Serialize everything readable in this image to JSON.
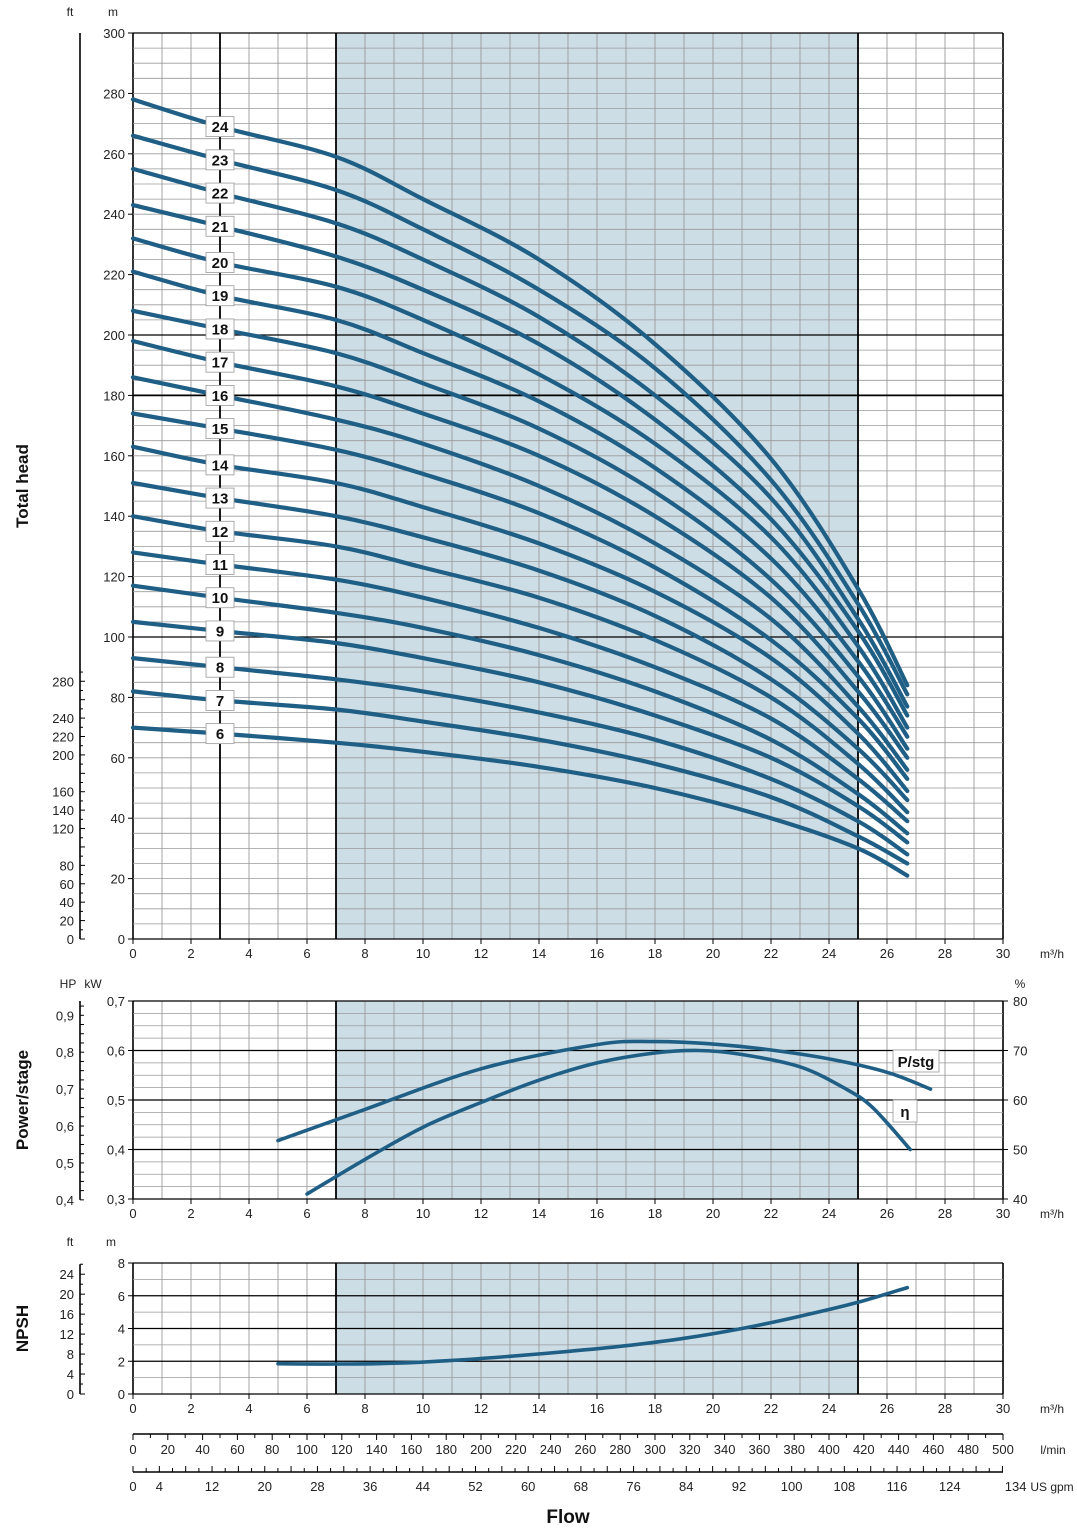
{
  "chart_data": [
    {
      "type": "line",
      "ylabel": "Total head",
      "y_units": [
        "ft",
        "m"
      ],
      "x_unit": "m³/h",
      "xlim": [
        0,
        30
      ],
      "x_ticks": [
        0,
        2,
        4,
        6,
        8,
        10,
        12,
        14,
        16,
        18,
        20,
        22,
        24,
        26,
        28,
        30
      ],
      "ylim": [
        0,
        300
      ],
      "y_ticks_m": [
        0,
        20,
        40,
        60,
        80,
        100,
        120,
        140,
        160,
        180,
        200,
        220,
        240,
        260,
        280,
        300
      ],
      "y_ticks_ft": [
        0,
        20,
        40,
        60,
        80,
        120,
        140,
        160,
        200,
        220,
        240,
        280
      ],
      "recommended_range": [
        7,
        25
      ],
      "grid": true,
      "x": [
        0,
        3,
        7,
        10,
        14,
        18,
        22,
        25,
        26.7
      ],
      "series": [
        {
          "name": "6",
          "values": [
            70,
            68,
            65,
            62,
            57,
            50,
            40,
            30,
            21
          ]
        },
        {
          "name": "7",
          "values": [
            82,
            79,
            76,
            72,
            66,
            58,
            47,
            34,
            25
          ]
        },
        {
          "name": "8",
          "values": [
            93,
            90,
            86,
            82,
            75,
            66,
            53,
            39,
            28
          ]
        },
        {
          "name": "9",
          "values": [
            105,
            102,
            98,
            93,
            85,
            74,
            60,
            44,
            32
          ]
        },
        {
          "name": "10",
          "values": [
            117,
            113,
            108,
            103,
            94,
            82,
            66,
            48,
            35
          ]
        },
        {
          "name": "11",
          "values": [
            128,
            124,
            119,
            113,
            103,
            90,
            73,
            53,
            39
          ]
        },
        {
          "name": "12",
          "values": [
            140,
            135,
            130,
            123,
            113,
            99,
            80,
            58,
            42
          ]
        },
        {
          "name": "13",
          "values": [
            151,
            146,
            140,
            133,
            122,
            107,
            86,
            63,
            46
          ]
        },
        {
          "name": "14",
          "values": [
            163,
            157,
            151,
            143,
            131,
            115,
            93,
            68,
            49
          ]
        },
        {
          "name": "15",
          "values": [
            174,
            169,
            162,
            154,
            141,
            123,
            99,
            73,
            53
          ]
        },
        {
          "name": "16",
          "values": [
            186,
            180,
            172,
            164,
            150,
            131,
            106,
            77,
            56
          ]
        },
        {
          "name": "17",
          "values": [
            198,
            191,
            183,
            174,
            160,
            140,
            113,
            82,
            60
          ]
        },
        {
          "name": "18",
          "values": [
            208,
            202,
            194,
            184,
            169,
            148,
            119,
            87,
            63
          ]
        },
        {
          "name": "19",
          "values": [
            221,
            213,
            205,
            194,
            178,
            156,
            126,
            92,
            67
          ]
        },
        {
          "name": "20",
          "values": [
            232,
            224,
            216,
            205,
            187,
            164,
            133,
            97,
            70
          ]
        },
        {
          "name": "21",
          "values": [
            243,
            236,
            226,
            215,
            197,
            172,
            139,
            102,
            74
          ]
        },
        {
          "name": "22",
          "values": [
            255,
            247,
            237,
            225,
            206,
            180,
            146,
            106,
            77
          ]
        },
        {
          "name": "23",
          "values": [
            266,
            258,
            248,
            235,
            215,
            189,
            152,
            111,
            81
          ]
        },
        {
          "name": "24",
          "values": [
            278,
            269,
            259,
            245,
            225,
            197,
            159,
            116,
            84
          ]
        }
      ]
    },
    {
      "type": "line",
      "ylabel": "Power/stage",
      "y_units_left": [
        "HP",
        "kW"
      ],
      "y_unit_right": "%",
      "x_unit": "m³/h",
      "xlim": [
        0,
        30
      ],
      "x_ticks": [
        0,
        2,
        4,
        6,
        8,
        10,
        12,
        14,
        16,
        18,
        20,
        22,
        24,
        26,
        28,
        30
      ],
      "ylim_kw": [
        0.3,
        0.7
      ],
      "y_ticks_kw": [
        "0,3",
        "0,4",
        "0,5",
        "0,6",
        "0,7"
      ],
      "y_ticks_hp": [
        "0,4",
        "0,5",
        "0,6",
        "0,7",
        "0,8",
        "0,9"
      ],
      "ylim_pct": [
        40,
        80
      ],
      "y_ticks_pct": [
        "40",
        "50",
        "60",
        "70",
        "80"
      ],
      "recommended_range": [
        7,
        25
      ],
      "grid": true,
      "series": [
        {
          "name": "P/stg",
          "axis": "kW",
          "x": [
            5,
            8,
            12,
            16,
            18,
            20,
            22,
            24,
            26,
            27.5
          ],
          "values": [
            0.418,
            0.481,
            0.563,
            0.612,
            0.618,
            0.613,
            0.601,
            0.583,
            0.556,
            0.522
          ]
        },
        {
          "name": "η",
          "axis": "%",
          "x": [
            6,
            8,
            10,
            12,
            14,
            16,
            18,
            19.5,
            21,
            23,
            24.5,
            25.5,
            26.8
          ],
          "values": [
            41,
            48,
            54.5,
            59.5,
            64,
            67.5,
            69.5,
            70,
            69.2,
            66.7,
            62.5,
            58.5,
            50
          ]
        }
      ]
    },
    {
      "type": "line",
      "ylabel": "NPSH",
      "y_units": [
        "ft",
        "m"
      ],
      "x_unit": "m³/h",
      "xlim": [
        0,
        30
      ],
      "x_ticks": [
        0,
        2,
        4,
        6,
        8,
        10,
        12,
        14,
        16,
        18,
        20,
        22,
        24,
        26,
        28,
        30
      ],
      "ylim": [
        0,
        8
      ],
      "y_ticks_m": [
        0,
        2,
        4,
        6,
        8
      ],
      "y_ticks_ft": [
        0,
        4,
        8,
        12,
        16,
        20,
        24
      ],
      "recommended_range": [
        7,
        25
      ],
      "grid": true,
      "series": [
        {
          "name": "NPSH",
          "x": [
            5,
            7,
            9,
            11,
            13,
            15,
            17,
            19,
            21,
            23,
            25,
            26.7
          ],
          "values": [
            1.85,
            1.83,
            1.88,
            2.05,
            2.3,
            2.6,
            2.95,
            3.4,
            4.0,
            4.75,
            5.6,
            6.5
          ]
        }
      ]
    }
  ],
  "flow_axes": {
    "title": "Flow",
    "lmin_unit": "l/min",
    "lmin_ticks": [
      0,
      20,
      40,
      60,
      80,
      100,
      120,
      140,
      160,
      180,
      200,
      220,
      240,
      260,
      280,
      300,
      320,
      340,
      360,
      380,
      400,
      420,
      440,
      460,
      480,
      500
    ],
    "usgpm_unit": "US gpm",
    "usgpm_ticks": [
      0,
      4,
      12,
      20,
      28,
      36,
      44,
      52,
      60,
      68,
      76,
      84,
      92,
      100,
      108,
      116,
      124,
      134
    ]
  },
  "colors": {
    "curve": "#1f5f86",
    "shade": "#ccdde5",
    "grid_fine": "#9a9a9a",
    "grid_major": "#000000"
  }
}
